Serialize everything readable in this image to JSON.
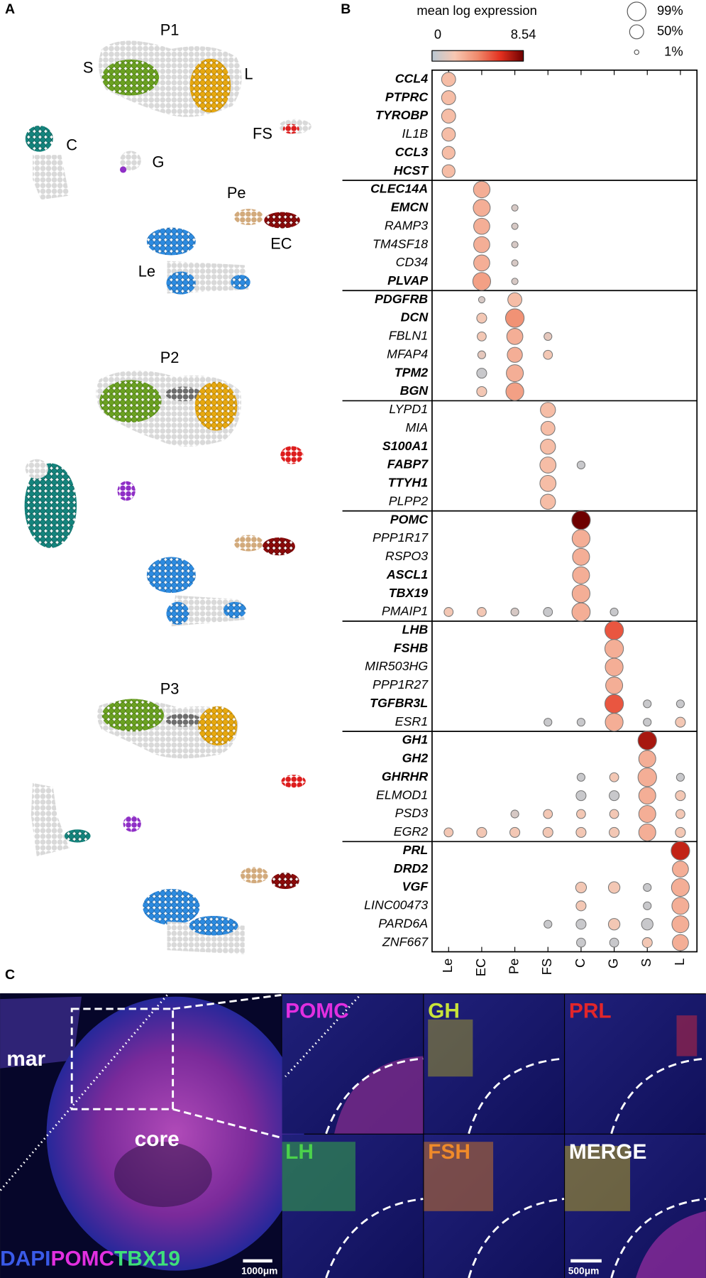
{
  "panel_a": {
    "label": "A",
    "umaps": [
      "P1",
      "P2",
      "P3"
    ],
    "cluster_labels": [
      "S",
      "L",
      "FS",
      "C",
      "G",
      "Pe",
      "EC",
      "Le"
    ]
  },
  "chart_data": {
    "type": "dotplot",
    "label": "B",
    "colorbar_title": "mean log expression",
    "clim": [
      0,
      8.54
    ],
    "cticks": [
      0,
      8.54
    ],
    "colorscale": [
      "#b9c8d3",
      "#f7c7b2",
      "#f08a6c",
      "#e3301f",
      "#6e0000"
    ],
    "size_legend": [
      {
        "value": 99,
        "label": "99%"
      },
      {
        "value": 50,
        "label": "50%"
      },
      {
        "value": 1,
        "label": "1%"
      }
    ],
    "categories": [
      "Le",
      "EC",
      "Pe",
      "FS",
      "C",
      "G",
      "S",
      "L"
    ],
    "genes": [
      {
        "name": "CCL4",
        "bold": true,
        "pct": [
          50,
          null,
          null,
          null,
          null,
          null,
          null,
          null
        ],
        "mean": [
          2.5,
          null,
          null,
          null,
          null,
          null,
          null,
          null
        ]
      },
      {
        "name": "PTPRC",
        "bold": true,
        "pct": [
          50,
          null,
          null,
          null,
          null,
          null,
          null,
          null
        ],
        "mean": [
          2.5,
          null,
          null,
          null,
          null,
          null,
          null,
          null
        ]
      },
      {
        "name": "TYROBP",
        "bold": true,
        "pct": [
          50,
          null,
          null,
          null,
          null,
          null,
          null,
          null
        ],
        "mean": [
          2.5,
          null,
          null,
          null,
          null,
          null,
          null,
          null
        ]
      },
      {
        "name": "IL1B",
        "bold": false,
        "pct": [
          45,
          null,
          null,
          null,
          null,
          null,
          null,
          null
        ],
        "mean": [
          2.5,
          null,
          null,
          null,
          null,
          null,
          null,
          null
        ]
      },
      {
        "name": "CCL3",
        "bold": true,
        "pct": [
          40,
          null,
          null,
          null,
          null,
          null,
          null,
          null
        ],
        "mean": [
          2.5,
          null,
          null,
          null,
          null,
          null,
          null,
          null
        ]
      },
      {
        "name": "HCST",
        "bold": true,
        "pct": [
          40,
          null,
          null,
          null,
          null,
          null,
          null,
          null
        ],
        "mean": [
          2.5,
          null,
          null,
          null,
          null,
          null,
          null,
          null
        ]
      },
      {
        "name": "CLEC14A",
        "bold": true,
        "pct": [
          null,
          75,
          null,
          null,
          null,
          null,
          null,
          null
        ],
        "mean": [
          null,
          3,
          null,
          null,
          null,
          null,
          null,
          null
        ]
      },
      {
        "name": "EMCN",
        "bold": true,
        "pct": [
          null,
          80,
          5,
          null,
          null,
          null,
          null,
          null
        ],
        "mean": [
          null,
          3,
          1,
          null,
          null,
          null,
          null,
          null
        ]
      },
      {
        "name": "RAMP3",
        "bold": false,
        "pct": [
          null,
          70,
          5,
          null,
          null,
          null,
          null,
          null
        ],
        "mean": [
          null,
          3,
          1,
          null,
          null,
          null,
          null,
          null
        ]
      },
      {
        "name": "TM4SF18",
        "bold": false,
        "pct": [
          null,
          70,
          5,
          null,
          null,
          null,
          null,
          null
        ],
        "mean": [
          null,
          3,
          1,
          null,
          null,
          null,
          null,
          null
        ]
      },
      {
        "name": "CD34",
        "bold": false,
        "pct": [
          null,
          70,
          5,
          null,
          null,
          null,
          null,
          null
        ],
        "mean": [
          null,
          3,
          1,
          null,
          null,
          null,
          null,
          null
        ]
      },
      {
        "name": "PLVAP",
        "bold": true,
        "pct": [
          null,
          90,
          5,
          null,
          null,
          null,
          null,
          null
        ],
        "mean": [
          null,
          3.5,
          1,
          null,
          null,
          null,
          null,
          null
        ]
      },
      {
        "name": "PDGFRB",
        "bold": true,
        "pct": [
          null,
          5,
          50,
          null,
          null,
          null,
          null,
          null
        ],
        "mean": [
          null,
          1,
          2.5,
          null,
          null,
          null,
          null,
          null
        ]
      },
      {
        "name": "DCN",
        "bold": true,
        "pct": [
          null,
          20,
          99,
          null,
          null,
          null,
          null,
          null
        ],
        "mean": [
          null,
          2,
          4,
          null,
          null,
          null,
          null,
          null
        ]
      },
      {
        "name": "FBLN1",
        "bold": false,
        "pct": [
          null,
          15,
          70,
          10,
          null,
          null,
          null,
          null
        ],
        "mean": [
          null,
          2,
          3,
          1.5,
          null,
          null,
          null,
          null
        ]
      },
      {
        "name": "MFAP4",
        "bold": false,
        "pct": [
          null,
          10,
          60,
          15,
          null,
          null,
          null,
          null
        ],
        "mean": [
          null,
          1.5,
          3,
          2,
          null,
          null,
          null,
          null
        ]
      },
      {
        "name": "TPM2",
        "bold": true,
        "pct": [
          null,
          20,
          80,
          null,
          null,
          null,
          null,
          null
        ],
        "mean": [
          null,
          0.5,
          3,
          null,
          null,
          null,
          null,
          null
        ]
      },
      {
        "name": "BGN",
        "bold": true,
        "pct": [
          null,
          20,
          90,
          null,
          null,
          null,
          null,
          null
        ],
        "mean": [
          null,
          2,
          3.5,
          null,
          null,
          null,
          null,
          null
        ]
      },
      {
        "name": "LYPD1",
        "bold": false,
        "pct": [
          null,
          null,
          null,
          60,
          null,
          null,
          null,
          null
        ],
        "mean": [
          null,
          null,
          null,
          2.5,
          null,
          null,
          null,
          null
        ]
      },
      {
        "name": "MIA",
        "bold": false,
        "pct": [
          null,
          null,
          null,
          50,
          null,
          null,
          null,
          null
        ],
        "mean": [
          null,
          null,
          null,
          2.5,
          null,
          null,
          null,
          null
        ]
      },
      {
        "name": "S100A1",
        "bold": true,
        "pct": [
          null,
          null,
          null,
          60,
          null,
          null,
          null,
          null
        ],
        "mean": [
          null,
          null,
          null,
          2.5,
          null,
          null,
          null,
          null
        ]
      },
      {
        "name": "FABP7",
        "bold": true,
        "pct": [
          null,
          null,
          null,
          70,
          10,
          null,
          null,
          null
        ],
        "mean": [
          null,
          null,
          null,
          2.5,
          0.5,
          null,
          null,
          null
        ]
      },
      {
        "name": "TTYH1",
        "bold": true,
        "pct": [
          null,
          null,
          null,
          70,
          null,
          null,
          null,
          null
        ],
        "mean": [
          null,
          null,
          null,
          2.5,
          null,
          null,
          null,
          null
        ]
      },
      {
        "name": "PLPP2",
        "bold": false,
        "pct": [
          null,
          null,
          null,
          60,
          null,
          null,
          null,
          null
        ],
        "mean": [
          null,
          null,
          null,
          2.5,
          null,
          null,
          null,
          null
        ]
      },
      {
        "name": "POMC",
        "bold": true,
        "pct": [
          null,
          null,
          null,
          null,
          99,
          null,
          null,
          null
        ],
        "mean": [
          null,
          null,
          null,
          null,
          8.54,
          null,
          null,
          null
        ]
      },
      {
        "name": "PPP1R17",
        "bold": false,
        "pct": [
          null,
          null,
          null,
          null,
          90,
          null,
          null,
          null
        ],
        "mean": [
          null,
          null,
          null,
          null,
          3,
          null,
          null,
          null
        ]
      },
      {
        "name": "RSPO3",
        "bold": false,
        "pct": [
          null,
          null,
          null,
          null,
          80,
          null,
          null,
          null
        ],
        "mean": [
          null,
          null,
          null,
          null,
          3,
          null,
          null,
          null
        ]
      },
      {
        "name": "ASCL1",
        "bold": true,
        "pct": [
          null,
          null,
          null,
          null,
          80,
          null,
          null,
          null
        ],
        "mean": [
          null,
          null,
          null,
          null,
          3,
          null,
          null,
          null
        ]
      },
      {
        "name": "TBX19",
        "bold": true,
        "pct": [
          null,
          null,
          null,
          null,
          90,
          null,
          null,
          null
        ],
        "mean": [
          null,
          null,
          null,
          null,
          3,
          null,
          null,
          null
        ]
      },
      {
        "name": "PMAIP1",
        "bold": false,
        "pct": [
          15,
          15,
          10,
          15,
          95,
          10,
          null,
          null
        ],
        "mean": [
          2,
          2,
          1,
          0.5,
          3,
          0.5,
          null,
          null
        ]
      },
      {
        "name": "LHB",
        "bold": true,
        "pct": [
          null,
          null,
          null,
          null,
          null,
          99,
          null,
          null
        ],
        "mean": [
          null,
          null,
          null,
          null,
          null,
          5.5,
          null,
          null
        ]
      },
      {
        "name": "FSHB",
        "bold": true,
        "pct": [
          null,
          null,
          null,
          null,
          null,
          99,
          null,
          null
        ],
        "mean": [
          null,
          null,
          null,
          null,
          null,
          3,
          null,
          null
        ]
      },
      {
        "name": "MIR503HG",
        "bold": false,
        "pct": [
          null,
          null,
          null,
          null,
          null,
          90,
          null,
          null
        ],
        "mean": [
          null,
          null,
          null,
          null,
          null,
          3,
          null,
          null
        ]
      },
      {
        "name": "PPP1R27",
        "bold": false,
        "pct": [
          null,
          null,
          null,
          null,
          null,
          80,
          null,
          null
        ],
        "mean": [
          null,
          null,
          null,
          null,
          null,
          3,
          null,
          null
        ]
      },
      {
        "name": "TGFBR3L",
        "bold": true,
        "pct": [
          null,
          null,
          null,
          null,
          null,
          99,
          10,
          10
        ],
        "mean": [
          null,
          null,
          null,
          null,
          null,
          5.5,
          0.5,
          0.5
        ]
      },
      {
        "name": "ESR1",
        "bold": false,
        "pct": [
          null,
          null,
          null,
          10,
          10,
          90,
          10,
          20
        ],
        "mean": [
          null,
          null,
          null,
          0.5,
          0.5,
          3,
          0.5,
          2
        ]
      },
      {
        "name": "GH1",
        "bold": true,
        "pct": [
          null,
          null,
          null,
          null,
          null,
          null,
          99,
          null
        ],
        "mean": [
          null,
          null,
          null,
          null,
          null,
          null,
          7.5,
          null
        ]
      },
      {
        "name": "GH2",
        "bold": true,
        "pct": [
          null,
          null,
          null,
          null,
          null,
          null,
          80,
          null
        ],
        "mean": [
          null,
          null,
          null,
          null,
          null,
          null,
          3,
          null
        ]
      },
      {
        "name": "GHRHR",
        "bold": true,
        "pct": [
          null,
          null,
          null,
          null,
          10,
          15,
          99,
          10
        ],
        "mean": [
          null,
          null,
          null,
          null,
          0.5,
          2,
          3,
          0.5
        ]
      },
      {
        "name": "ELMOD1",
        "bold": false,
        "pct": [
          null,
          null,
          null,
          null,
          20,
          20,
          80,
          20
        ],
        "mean": [
          null,
          null,
          null,
          null,
          0.5,
          0.5,
          3,
          2
        ]
      },
      {
        "name": "PSD3",
        "bold": false,
        "pct": [
          null,
          null,
          10,
          15,
          15,
          15,
          80,
          15
        ],
        "mean": [
          null,
          null,
          1,
          2,
          2,
          2,
          3,
          2
        ]
      },
      {
        "name": "EGR2",
        "bold": false,
        "pct": [
          15,
          20,
          20,
          20,
          20,
          20,
          80,
          20
        ],
        "mean": [
          2,
          2,
          2,
          2,
          2,
          2,
          3,
          2
        ]
      },
      {
        "name": "PRL",
        "bold": true,
        "pct": [
          null,
          null,
          null,
          null,
          null,
          null,
          null,
          99
        ],
        "mean": [
          null,
          null,
          null,
          null,
          null,
          null,
          null,
          7
        ]
      },
      {
        "name": "DRD2",
        "bold": true,
        "pct": [
          null,
          null,
          null,
          null,
          null,
          null,
          null,
          70
        ],
        "mean": [
          null,
          null,
          null,
          null,
          null,
          null,
          null,
          3
        ]
      },
      {
        "name": "VGF",
        "bold": true,
        "pct": [
          null,
          null,
          null,
          null,
          25,
          30,
          10,
          90
        ],
        "mean": [
          null,
          null,
          null,
          null,
          2,
          2,
          0.5,
          3
        ]
      },
      {
        "name": "LINC00473",
        "bold": false,
        "pct": [
          null,
          null,
          null,
          null,
          20,
          null,
          10,
          80
        ],
        "mean": [
          null,
          null,
          null,
          null,
          2,
          null,
          0.5,
          3
        ]
      },
      {
        "name": "PARD6A",
        "bold": false,
        "pct": [
          null,
          null,
          null,
          10,
          20,
          30,
          30,
          80
        ],
        "mean": [
          null,
          null,
          null,
          0.5,
          0.5,
          2,
          0.5,
          3
        ]
      },
      {
        "name": "ZNF667",
        "bold": false,
        "pct": [
          null,
          null,
          null,
          null,
          15,
          15,
          20,
          70
        ],
        "mean": [
          null,
          null,
          null,
          null,
          0.5,
          0.5,
          2,
          3
        ]
      }
    ]
  },
  "panel_c": {
    "label": "C",
    "region_labels": [
      "mar",
      "core"
    ],
    "stain_legend": [
      "DAPI",
      "POMC",
      "TBX19"
    ],
    "scale_bars": [
      "1000μm",
      "500μm"
    ],
    "insets": [
      "POMC",
      "GH",
      "PRL",
      "LH",
      "FSH",
      "MERGE"
    ]
  }
}
